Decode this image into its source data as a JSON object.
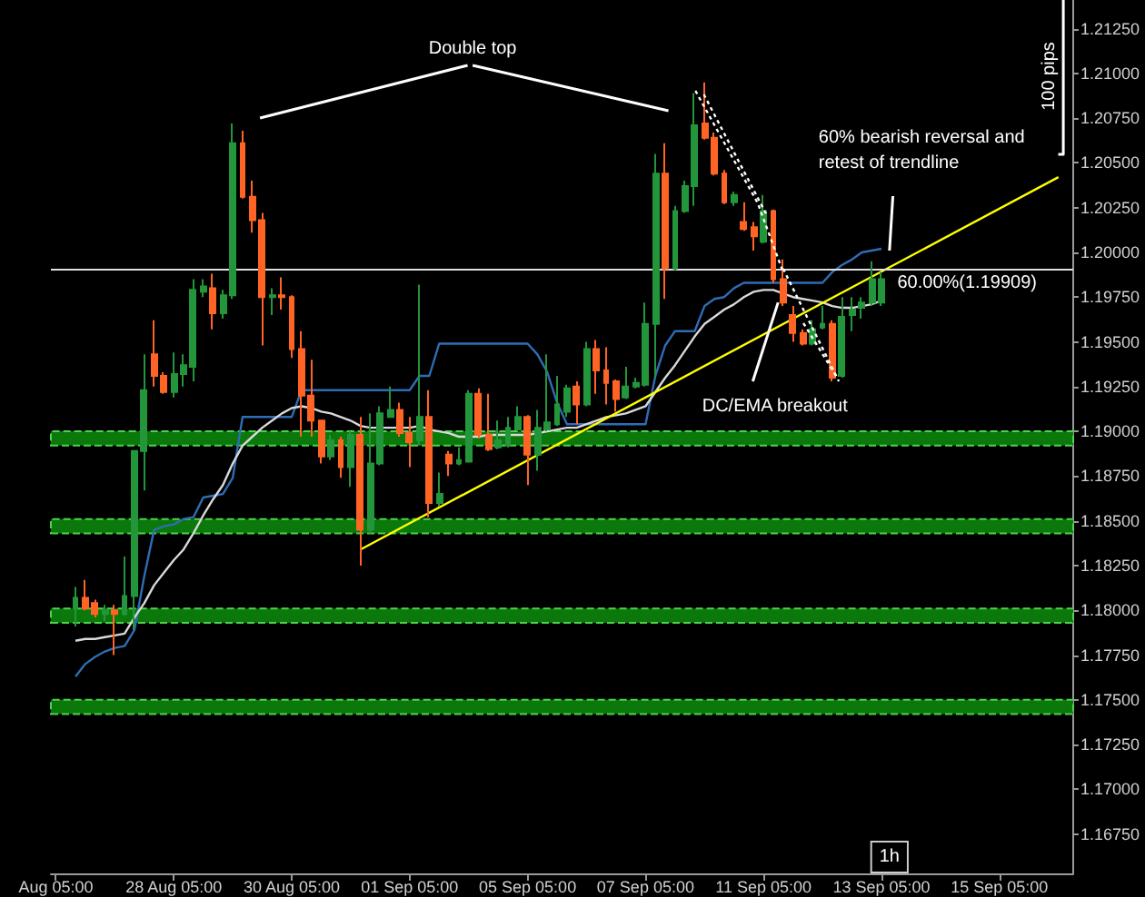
{
  "chart_data": {
    "type": "candlestick",
    "categories": [
      "Aug 05:00",
      null,
      null,
      null,
      null,
      null,
      null,
      null,
      null,
      null,
      null,
      null,
      "28 Aug 05:00",
      null,
      null,
      null,
      null,
      null,
      null,
      null,
      null,
      null,
      null,
      null,
      "30 Aug 05:00",
      null,
      null,
      null,
      null,
      null,
      null,
      null,
      null,
      null,
      null,
      null,
      "01 Sep 05:00",
      null,
      null,
      null,
      null,
      null,
      null,
      null,
      null,
      null,
      null,
      null,
      "05 Sep 05:00",
      null,
      null,
      null,
      null,
      null,
      null,
      null,
      null,
      null,
      null,
      null,
      "07 Sep 05:00",
      null,
      null,
      null,
      null,
      null,
      null,
      null,
      null,
      null,
      null,
      null,
      "11 Sep 05:00",
      null,
      null,
      null,
      null,
      null,
      null,
      null,
      null,
      null,
      null,
      null,
      "13 Sep 05:00",
      null,
      null,
      null,
      null,
      null,
      null,
      null,
      null,
      null,
      null,
      null,
      "15 Sep 05:00",
      null,
      null,
      null,
      null,
      null,
      null,
      null
    ],
    "ohlc": [
      null,
      null,
      [
        1.1801,
        1.1813,
        1.1791,
        1.1807
      ],
      [
        1.1807,
        1.1817,
        1.18,
        1.1801
      ],
      [
        1.1804,
        1.1806,
        1.1796,
        1.1798
      ],
      [
        1.1798,
        1.1803,
        1.1794,
        1.18
      ],
      [
        1.18,
        1.1803,
        1.1775,
        1.1798
      ],
      [
        1.1798,
        1.183,
        1.1797,
        1.1808
      ],
      [
        1.1808,
        1.1889,
        1.1789,
        1.1889
      ],
      [
        1.1889,
        1.1943,
        1.1867,
        1.1923
      ],
      [
        1.1943,
        1.1962,
        1.1925,
        1.1931
      ],
      [
        1.1931,
        1.1933,
        1.1921,
        1.1922
      ],
      [
        1.1922,
        1.1944,
        1.1919,
        1.1932
      ],
      [
        1.1932,
        1.1943,
        1.1925,
        1.1937
      ],
      [
        1.1936,
        1.1985,
        1.1928,
        1.1979
      ],
      [
        1.1978,
        1.1985,
        1.1975,
        1.1981
      ],
      [
        1.198,
        1.1988,
        1.1957,
        1.1966
      ],
      [
        1.1966,
        1.1979,
        1.1963,
        1.1976
      ],
      [
        1.1976,
        1.2072,
        1.1974,
        1.2061
      ],
      [
        1.2061,
        1.2068,
        1.203,
        1.2031
      ],
      [
        1.2031,
        1.204,
        1.2011,
        1.2018
      ],
      [
        1.2018,
        1.2022,
        1.1948,
        1.1975
      ],
      [
        1.1975,
        1.198,
        1.1965,
        1.1976
      ],
      [
        1.1976,
        1.1986,
        1.1968,
        1.1975
      ],
      [
        1.1975,
        1.1976,
        1.1941,
        1.1946
      ],
      [
        1.1946,
        1.1956,
        1.1897,
        1.192
      ],
      [
        1.192,
        1.194,
        1.1897,
        1.1906
      ],
      [
        1.1906,
        1.1906,
        1.1882,
        1.1886
      ],
      [
        1.1886,
        1.1898,
        1.1884,
        1.1895
      ],
      [
        1.1895,
        1.1897,
        1.1874,
        1.188
      ],
      [
        1.188,
        1.19,
        1.1869,
        1.1898
      ],
      [
        1.1898,
        1.1908,
        1.1825,
        1.1845
      ],
      [
        1.1845,
        1.191,
        1.1843,
        1.1882
      ],
      [
        1.1882,
        1.1914,
        1.1881,
        1.191
      ],
      [
        1.1908,
        1.1925,
        1.1908,
        1.1912
      ],
      [
        1.1912,
        1.1916,
        1.1897,
        1.1899
      ],
      [
        1.1899,
        1.1908,
        1.188,
        1.1894
      ],
      [
        1.1895,
        1.1982,
        1.1892,
        1.1908
      ],
      [
        1.1908,
        1.1923,
        1.1852,
        1.186
      ],
      [
        1.186,
        1.1877,
        1.1858,
        1.1865
      ],
      [
        1.1887,
        1.1889,
        1.1875,
        1.1882
      ],
      [
        1.1882,
        1.1891,
        1.1881,
        1.1884
      ],
      [
        1.1883,
        1.1923,
        1.1883,
        1.1921
      ],
      [
        1.1921,
        1.1924,
        1.1896,
        1.1898
      ],
      [
        1.1898,
        1.1921,
        1.1889,
        1.189
      ],
      [
        1.1891,
        1.1906,
        1.189,
        1.1895
      ],
      [
        1.1892,
        1.1908,
        1.1891,
        1.1902
      ],
      [
        1.1901,
        1.1914,
        1.19,
        1.1908
      ],
      [
        1.1908,
        1.1909,
        1.187,
        1.1887
      ],
      [
        1.1887,
        1.1912,
        1.1878,
        1.1902
      ],
      [
        1.1901,
        1.1943,
        1.19,
        1.1905
      ],
      [
        1.1904,
        1.1931,
        1.1903,
        1.1915
      ],
      [
        1.1911,
        1.1926,
        1.1908,
        1.1924
      ],
      [
        1.1925,
        1.1928,
        1.1904,
        1.1915
      ],
      [
        1.1915,
        1.195,
        1.1914,
        1.1946
      ],
      [
        1.1946,
        1.1951,
        1.1921,
        1.1934
      ],
      [
        1.1934,
        1.1947,
        1.1915,
        1.1927
      ],
      [
        1.1928,
        1.1929,
        1.1911,
        1.1918
      ],
      [
        1.1919,
        1.1936,
        1.1918,
        1.1925
      ],
      [
        1.1925,
        1.193,
        1.1924,
        1.1927
      ],
      [
        1.1926,
        1.1972,
        1.1925,
        1.196
      ],
      [
        1.196,
        1.2055,
        1.193,
        1.2044
      ],
      [
        1.2044,
        1.2061,
        1.1974,
        1.1991
      ],
      [
        1.1991,
        1.2026,
        1.199,
        1.2023
      ],
      [
        1.2023,
        1.204,
        1.2022,
        1.2037
      ],
      [
        1.2037,
        1.2089,
        1.2026,
        1.2071
      ],
      [
        1.2072,
        1.2095,
        1.2063,
        1.2064
      ],
      [
        1.2064,
        1.2067,
        1.2043,
        1.2044
      ],
      [
        1.2044,
        1.2046,
        1.2027,
        1.2028
      ],
      [
        1.2028,
        1.2034,
        1.2026,
        1.2032
      ],
      [
        1.2017,
        1.2028,
        1.2012,
        1.2013
      ],
      [
        1.2014,
        1.2017,
        1.2001,
        1.2009
      ],
      [
        1.2006,
        1.2032,
        1.2005,
        1.2023
      ],
      [
        1.2023,
        1.2024,
        1.1983,
        1.1985
      ],
      [
        1.1985,
        1.1996,
        1.197,
        1.1972
      ],
      [
        1.1965,
        1.197,
        1.195,
        1.1955
      ],
      [
        1.1955,
        1.1957,
        1.1948,
        1.1949
      ],
      [
        1.1949,
        1.1962,
        1.1948,
        1.1957
      ],
      [
        1.1958,
        1.197,
        1.1957,
        1.196
      ],
      [
        1.196,
        1.1962,
        1.1928,
        1.193
      ],
      [
        1.1931,
        1.1975,
        1.193,
        1.1964
      ],
      [
        1.1965,
        1.1975,
        1.1956,
        1.1968
      ],
      [
        1.1969,
        1.1975,
        1.1963,
        1.1972
      ],
      [
        1.1972,
        1.1995,
        1.197,
        1.1985
      ],
      [
        1.1972,
        1.1989,
        1.197,
        1.1985
      ],
      null,
      null,
      null,
      null,
      null,
      null,
      null,
      null,
      null,
      null,
      null,
      null,
      null,
      null,
      null,
      null,
      null,
      null,
      null
    ],
    "series": [
      {
        "type": "line",
        "color": "#2f6db5",
        "values": [
          null,
          null,
          1.1763,
          1.177,
          1.1774,
          1.1777,
          1.1779,
          1.178,
          1.1789,
          1.1819,
          1.1845,
          1.1847,
          1.1848,
          1.1851,
          1.1852,
          1.1863,
          1.1864,
          1.1865,
          1.1874,
          1.1908,
          1.1908,
          1.1908,
          1.1908,
          1.1908,
          1.1908,
          1.1923,
          1.1923,
          1.1923,
          1.1923,
          1.1923,
          1.1923,
          1.1923,
          1.1923,
          1.1923,
          1.1923,
          1.1923,
          1.1923,
          1.1931,
          1.1931,
          1.1949,
          1.1949,
          1.1949,
          1.1949,
          1.1949,
          1.1949,
          1.1949,
          1.1949,
          1.1949,
          1.1949,
          1.1943,
          1.1933,
          1.1916,
          1.1904,
          1.1904,
          1.1904,
          1.1904,
          1.1904,
          1.1904,
          1.1904,
          1.1904,
          1.1904,
          1.1931,
          1.1948,
          1.1956,
          1.1956,
          1.1956,
          1.197,
          1.1974,
          1.1975,
          1.198,
          1.1983,
          1.1983,
          1.1983,
          1.1983,
          1.1983,
          1.1983,
          1.1983,
          1.1983,
          1.1983,
          1.1989,
          1.1993,
          1.1996,
          1.2,
          1.2001,
          1.2002,
          null,
          null,
          null,
          null,
          null,
          null,
          null,
          null,
          null,
          null,
          null,
          null,
          null,
          null,
          null,
          null,
          null,
          null,
          null
        ]
      },
      {
        "type": "line",
        "color": "#d9d9d9",
        "values": [
          null,
          null,
          1.1783,
          1.1784,
          1.1784,
          1.1785,
          1.1786,
          1.1787,
          1.1796,
          1.1804,
          1.1814,
          1.1821,
          1.1828,
          1.1834,
          1.1843,
          1.1853,
          1.1862,
          1.187,
          1.1882,
          1.1892,
          1.1897,
          1.1902,
          1.1906,
          1.191,
          1.1913,
          1.1914,
          1.1913,
          1.1911,
          1.191,
          1.1908,
          1.1906,
          1.1903,
          1.1902,
          1.1902,
          1.1902,
          1.1902,
          1.1902,
          1.1903,
          1.1901,
          1.19,
          1.1899,
          1.1897,
          1.1897,
          1.1897,
          1.1898,
          1.1898,
          1.1898,
          1.1898,
          1.1898,
          1.1899,
          1.19,
          1.1901,
          1.1902,
          1.1902,
          1.1904,
          1.1906,
          1.1908,
          1.1909,
          1.191,
          1.1912,
          1.1914,
          1.1922,
          1.193,
          1.1937,
          1.1945,
          1.1953,
          1.196,
          1.1964,
          1.1968,
          1.1971,
          1.1975,
          1.1978,
          1.1979,
          1.1979,
          1.1977,
          1.1975,
          1.1974,
          1.1973,
          1.1972,
          1.197,
          1.1969,
          1.1969,
          1.197,
          1.1971,
          1.1973,
          null,
          null,
          null,
          null,
          null,
          null,
          null,
          null,
          null,
          null,
          null,
          null,
          null,
          null,
          null,
          null,
          null,
          null,
          null
        ]
      },
      {
        "type": "line",
        "color": "#ffff00",
        "values": [
          null,
          null,
          null,
          null,
          null,
          null,
          null,
          null,
          null,
          null,
          null,
          null,
          null,
          null,
          null,
          null,
          null,
          null,
          null,
          null,
          null,
          null,
          null,
          null,
          null,
          null,
          null,
          null,
          null,
          null,
          null,
          1.1834,
          null,
          null,
          null,
          null,
          null,
          null,
          null,
          null,
          null,
          null,
          null,
          null,
          null,
          null,
          null,
          null,
          null,
          null,
          null,
          null,
          null,
          null,
          null,
          null,
          null,
          null,
          null,
          null,
          null,
          null,
          null,
          null,
          null,
          null,
          null,
          null,
          null,
          null,
          null,
          null,
          null,
          null,
          null,
          null,
          null,
          null,
          null,
          null,
          null,
          null,
          null,
          null,
          null,
          null,
          null,
          null,
          null,
          null,
          null,
          null,
          null,
          null,
          null,
          null,
          null,
          null,
          null,
          null,
          null,
          null,
          1.2042,
          null
        ]
      }
    ],
    "ylim": [
      1.1653,
      1.2141
    ],
    "yticks": [
      {
        "value": 1.1675,
        "label": "1.16750"
      },
      {
        "value": 1.17,
        "label": "1.17000"
      },
      {
        "value": 1.1725,
        "label": "1.17250"
      },
      {
        "value": 1.175,
        "label": "1.17500"
      },
      {
        "value": 1.1775,
        "label": "1.17750"
      },
      {
        "value": 1.18,
        "label": "1.18000"
      },
      {
        "value": 1.1825,
        "label": "1.18250"
      },
      {
        "value": 1.185,
        "label": "1.18500"
      },
      {
        "value": 1.1875,
        "label": "1.18750"
      },
      {
        "value": 1.19,
        "label": "1.19000"
      },
      {
        "value": 1.1925,
        "label": "1.19250"
      },
      {
        "value": 1.195,
        "label": "1.19500"
      },
      {
        "value": 1.1975,
        "label": "1.19750"
      },
      {
        "value": 1.2,
        "label": "1.20000"
      },
      {
        "value": 1.2025,
        "label": "1.20250"
      },
      {
        "value": 1.205,
        "label": "1.20500"
      },
      {
        "value": 1.2075,
        "label": "1.20750"
      },
      {
        "value": 1.21,
        "label": "1.21000"
      },
      {
        "value": 1.2125,
        "label": "1.21250"
      }
    ],
    "marker": "none",
    "bands": [
      {
        "axis": "y",
        "from": 1.1892,
        "to": 1.19,
        "color": "#0a780a"
      },
      {
        "axis": "y",
        "from": 1.1843,
        "to": 1.1851,
        "color": "#0a780a"
      },
      {
        "axis": "y",
        "from": 1.1793,
        "to": 1.1801,
        "color": "#0a780a"
      },
      {
        "axis": "y",
        "from": 1.1742,
        "to": 1.175,
        "color": "#0a780a"
      }
    ],
    "ref_lines": [
      {
        "axis": "y",
        "value": 1.19909,
        "label": "60.00%(1.19909)",
        "color": "#e0e0e0"
      }
    ],
    "annotations": [
      "Double top",
      "60% bearish reversal and retest of trendline",
      {
        "text": "DC/EMA breakout",
        "y": 1.1972
      },
      "100 pips",
      "1h"
    ]
  }
}
